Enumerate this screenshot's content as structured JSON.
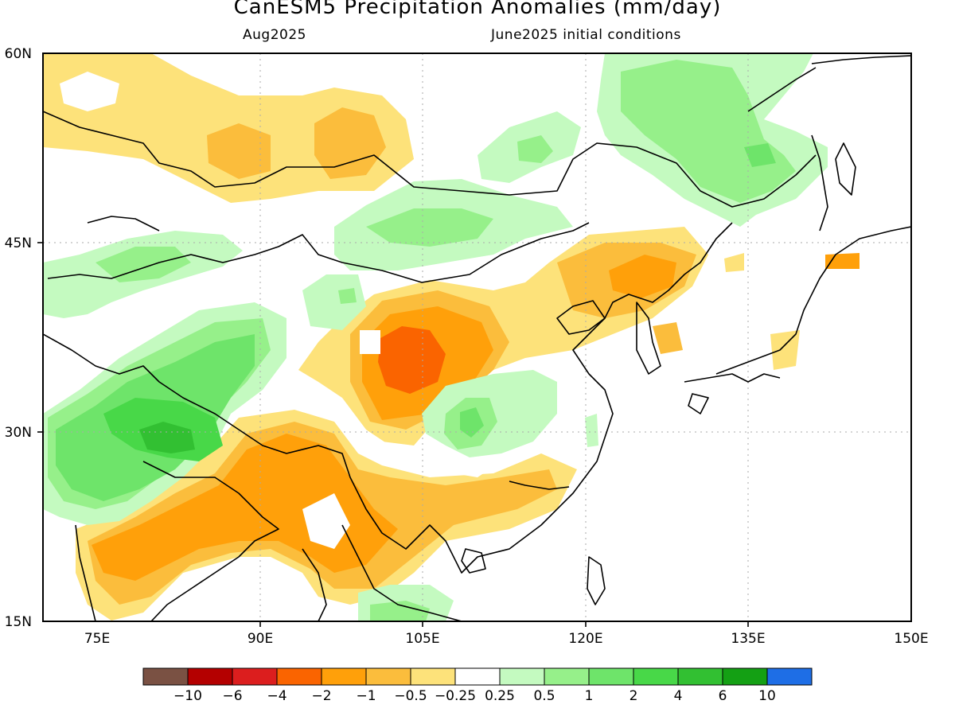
{
  "title": "CanESM5 Precipitation Anomalies (mm/day)",
  "subtitle_left": "Aug2025",
  "subtitle_right": "June2025 initial conditions",
  "lat_ticks": [
    "60N",
    "45N",
    "30N",
    "15N"
  ],
  "lon_ticks": [
    "75E",
    "90E",
    "105E",
    "120E",
    "135E",
    "150E"
  ],
  "colorbar": {
    "colors": [
      "#7a5143",
      "#b40000",
      "#dc1e1e",
      "#fa6400",
      "#ffa00a",
      "#fbbd3c",
      "#fde27a",
      "#ffffff",
      "#c4fac0",
      "#96f08a",
      "#6ee46a",
      "#48d848",
      "#32c032",
      "#14a014",
      "#1e6ee6"
    ],
    "labels": [
      "−10",
      "−6",
      "−4",
      "−2",
      "−1",
      "−0.5",
      "−0.25",
      "0.25",
      "0.5",
      "1",
      "2",
      "4",
      "6",
      "10"
    ]
  },
  "palette": {
    "orange_light": "#fde27a",
    "orange_mid": "#fbbd3c",
    "orange": "#ffa00a",
    "orange_dark": "#fa6400",
    "green_light": "#c4fac0",
    "green_mid": "#96f08a",
    "green": "#6ee46a",
    "green_dark": "#48d848",
    "green_darker": "#32c032"
  }
}
